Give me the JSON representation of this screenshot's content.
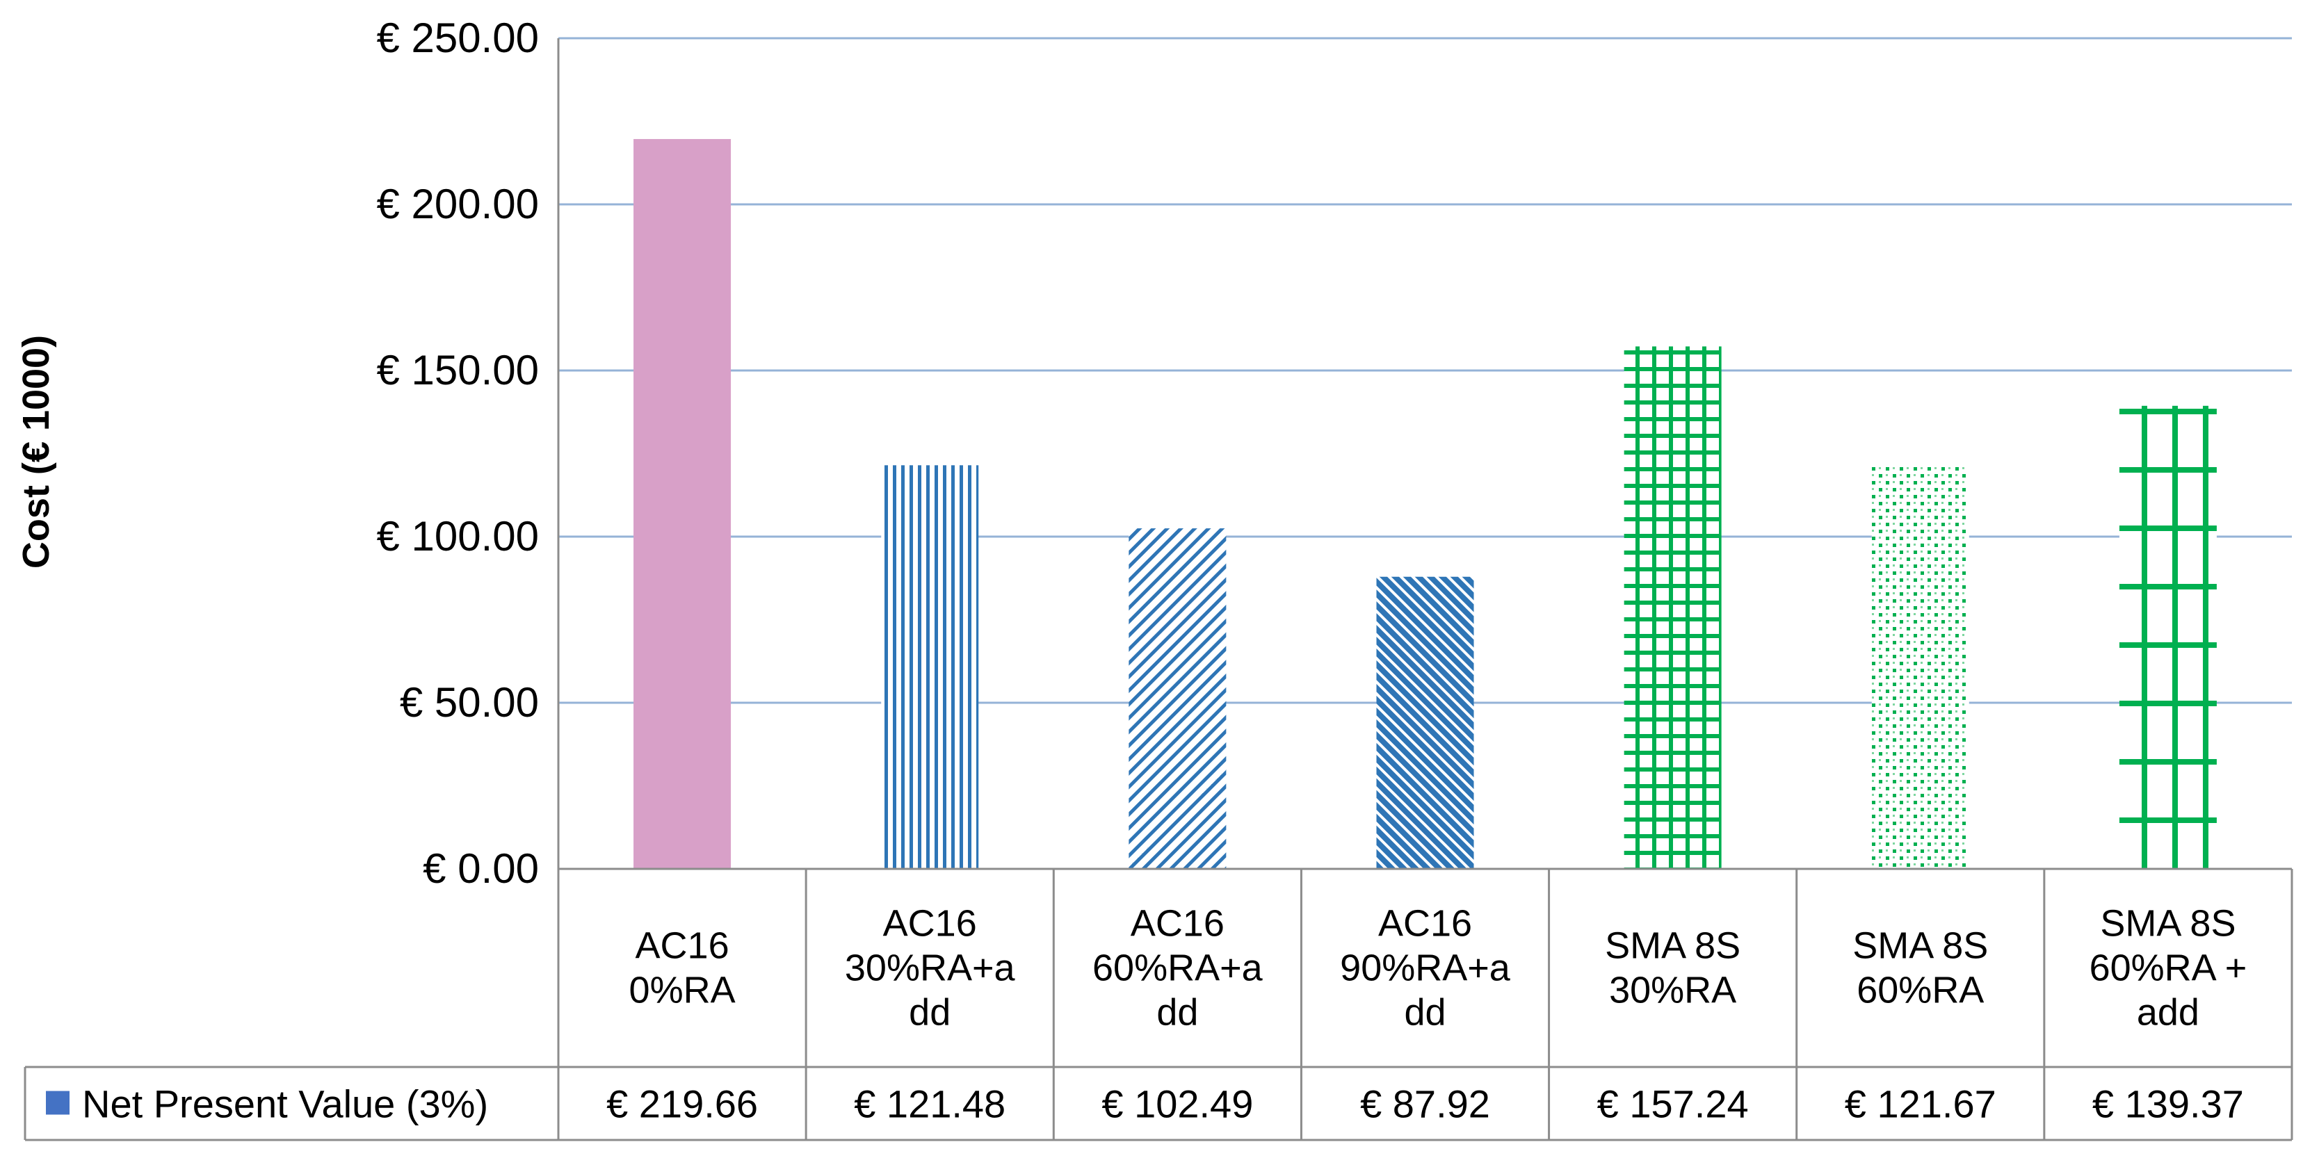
{
  "chart_data": {
    "type": "bar",
    "title": "",
    "xlabel": "",
    "ylabel": "Cost (€ 1000)",
    "ylim": [
      0,
      250
    ],
    "yticks": [
      0,
      50,
      100,
      150,
      200,
      250
    ],
    "ytick_labels": [
      "€ 0.00",
      "€ 50.00",
      "€ 100.00",
      "€ 150.00",
      "€ 200.00",
      "€ 250.00"
    ],
    "grid": true,
    "categories": [
      [
        "AC16",
        "0%RA"
      ],
      [
        "AC16",
        "30%RA+a",
        "dd"
      ],
      [
        "AC16",
        "60%RA+a",
        "dd"
      ],
      [
        "AC16",
        "90%RA+a",
        "dd"
      ],
      [
        "SMA 8S",
        "30%RA"
      ],
      [
        "SMA 8S",
        "60%RA"
      ],
      [
        "SMA 8S",
        "60%RA +",
        "add"
      ]
    ],
    "series": [
      {
        "name": "Net Present Value (3%)",
        "values": [
          219.66,
          121.48,
          102.49,
          87.92,
          157.24,
          121.67,
          139.37
        ],
        "value_labels": [
          "€ 219.66",
          "€ 121.48",
          "€ 102.49",
          "€ 87.92",
          "€ 157.24",
          "€ 121.67",
          "€ 139.37"
        ]
      }
    ],
    "legend_placement": "data-table-left",
    "legend_color": "#4472C4",
    "bar_styles": [
      {
        "fill": "solid",
        "color": "#D8A0C8"
      },
      {
        "fill": "vertical-lines",
        "color": "#2E75B6"
      },
      {
        "fill": "diagonal-lines",
        "color": "#2E75B6"
      },
      {
        "fill": "dense-diagonal",
        "color": "#2E75B6"
      },
      {
        "fill": "fine-grid",
        "color": "#00B050"
      },
      {
        "fill": "dots",
        "color": "#00B050"
      },
      {
        "fill": "coarse-grid",
        "color": "#00B050"
      }
    ]
  }
}
